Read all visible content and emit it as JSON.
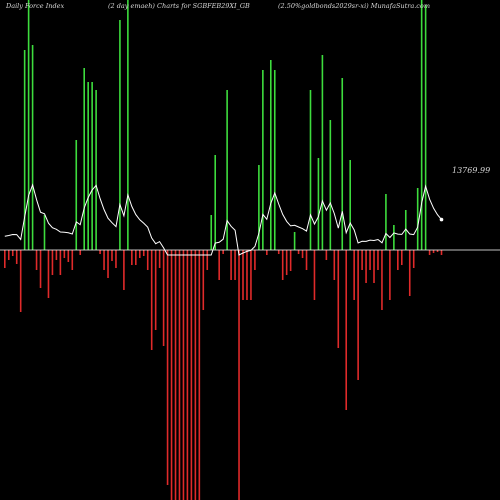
{
  "header": {
    "left": "Daily Force  Index",
    "center": "(2 day emaeh) Charts for SGBFEB29XI_GB",
    "right": "(2.50%goldbonds2029sr-xi) MunafaSutra.com"
  },
  "chart_data": {
    "type": "bar",
    "title": "Daily Force  Index",
    "last_value_label": "13769.99",
    "colors": {
      "positive": "#3ddc3d",
      "negative": "#e02a2a",
      "line": "#ffffff",
      "background": "#000000",
      "zero_line": "#ffffff"
    },
    "ylim": [
      -250,
      250
    ],
    "force_values": [
      -18,
      -10,
      -6,
      -14,
      -62,
      200,
      250,
      205,
      -20,
      -38,
      35,
      -48,
      -25,
      -10,
      -25,
      -8,
      -12,
      -20,
      110,
      -5,
      182,
      168,
      168,
      160,
      -4,
      -20,
      -28,
      -11,
      -18,
      230,
      -40,
      250,
      -15,
      -15,
      -8,
      -6,
      -20,
      -100,
      -80,
      -18,
      -96,
      -235,
      -250,
      -250,
      -250,
      -250,
      -250,
      -250,
      -250,
      -250,
      -60,
      -20,
      35,
      95,
      -30,
      -4,
      160,
      -30,
      -30,
      -250,
      -50,
      -50,
      -50,
      -20,
      85,
      180,
      -5,
      190,
      180,
      -4,
      -30,
      -25,
      -21,
      18,
      -4,
      -8,
      -20,
      160,
      -50,
      92,
      195,
      -10,
      130,
      -30,
      -98,
      172,
      -160,
      90,
      -50,
      -130,
      -20,
      -33,
      -20,
      -33,
      -20,
      -60,
      56,
      -50,
      25,
      -20,
      -15,
      40,
      -46,
      -18,
      62,
      250,
      245,
      -5,
      -3,
      -2,
      -5
    ]
  }
}
